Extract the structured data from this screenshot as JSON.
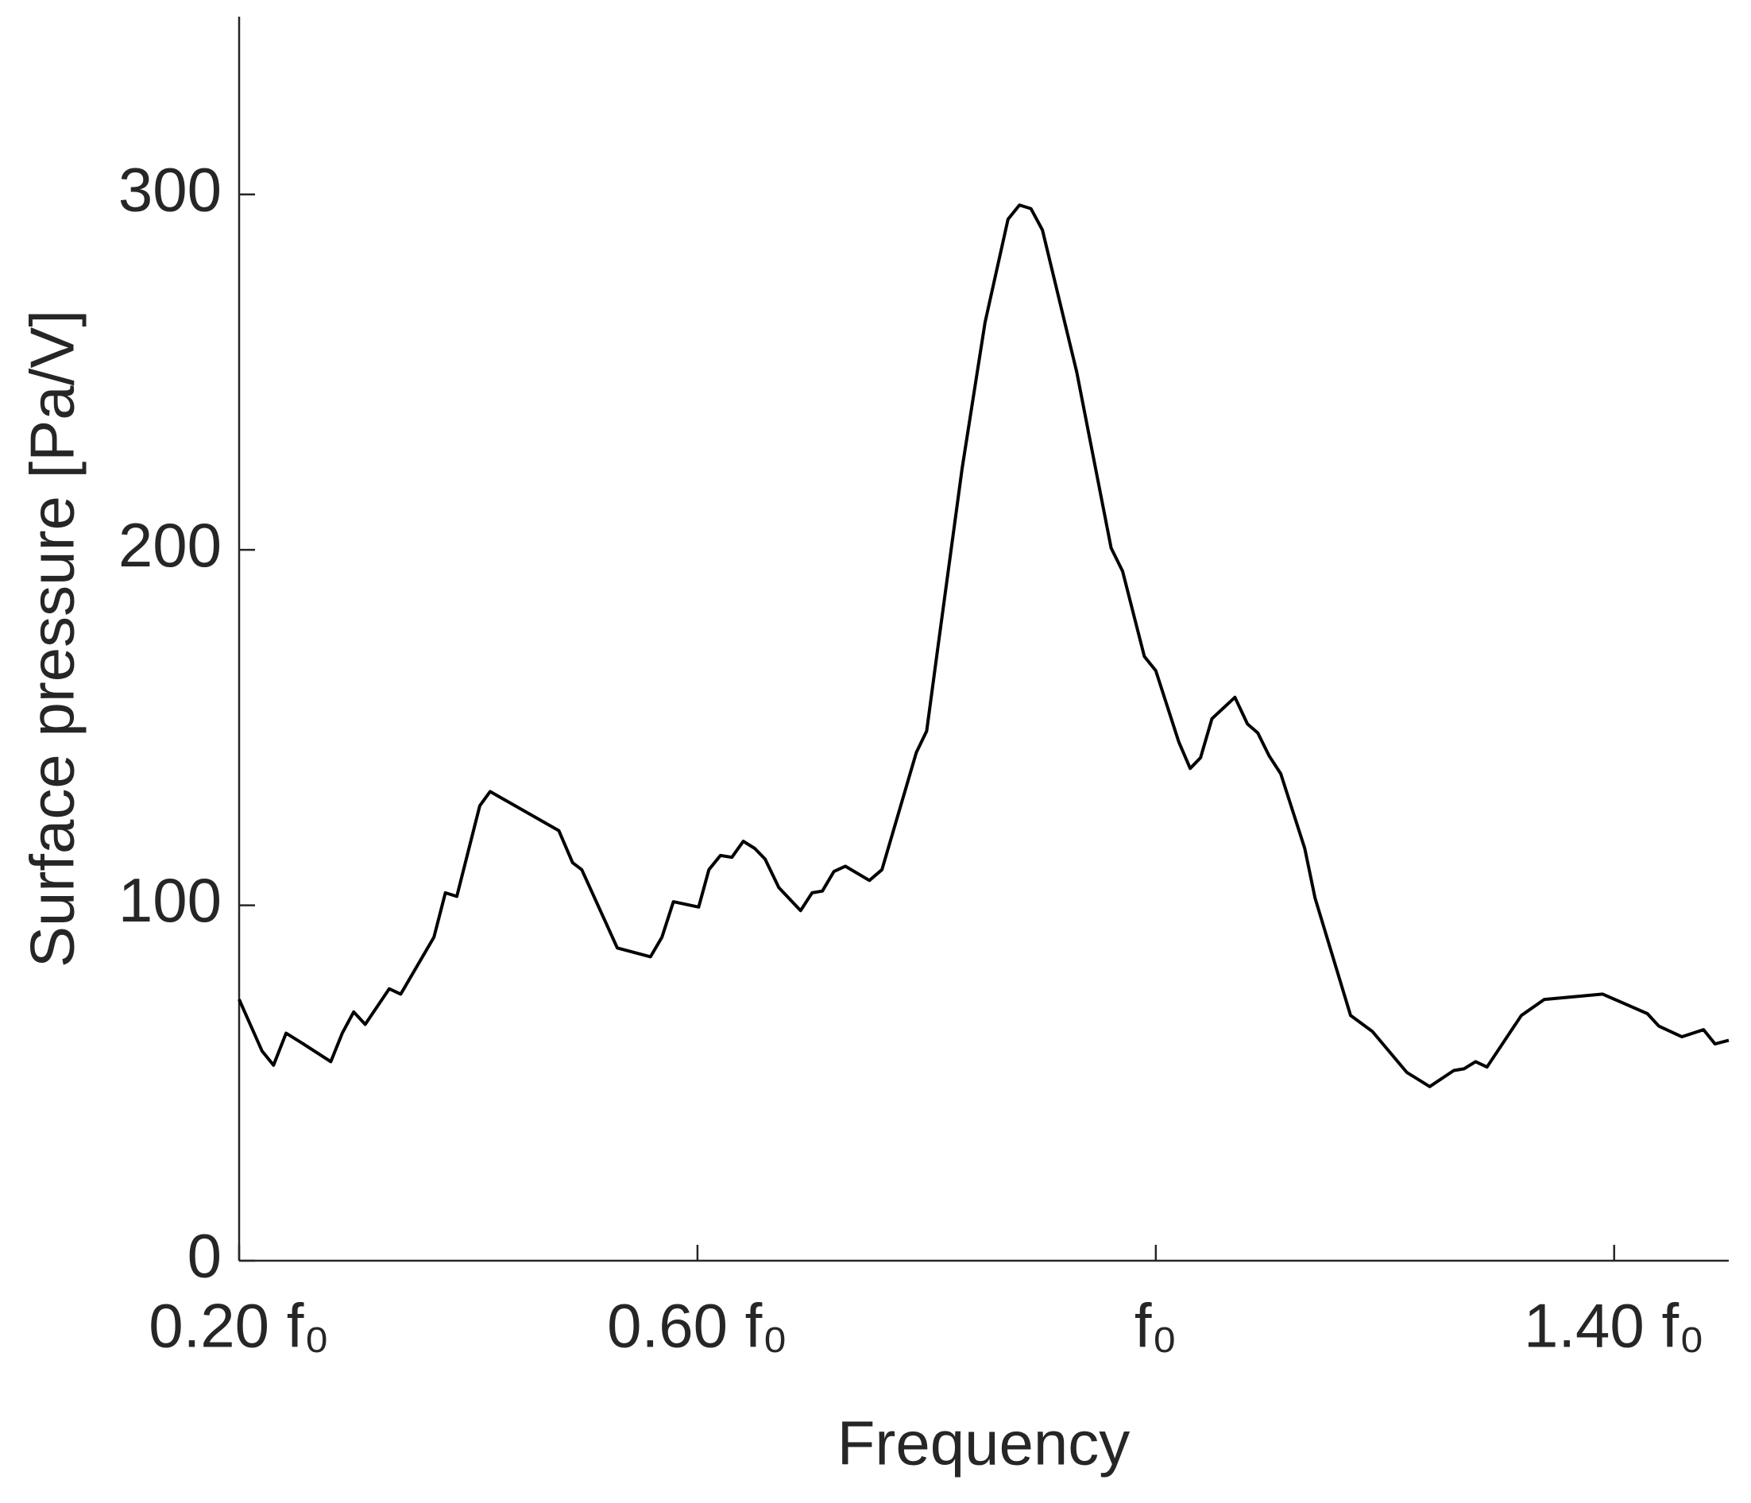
{
  "chart_data": {
    "type": "line",
    "x_label": "Frequency",
    "y_label": "Surface pressure [Pa/V]",
    "xlim": [
      0.2,
      1.5
    ],
    "ylim": [
      0,
      350
    ],
    "xticks": [
      {
        "value": 0.2,
        "label": "0.20 f₀"
      },
      {
        "value": 0.6,
        "label": "0.60 f₀"
      },
      {
        "value": 1.0,
        "label": "f₀"
      },
      {
        "value": 1.4,
        "label": "1.40 f₀"
      }
    ],
    "yticks": [
      0,
      100,
      200,
      300
    ],
    "grid": false,
    "color": "#000000",
    "x": [
      0.2,
      0.22,
      0.23,
      0.241,
      0.256,
      0.28,
      0.29,
      0.3,
      0.31,
      0.331,
      0.341,
      0.37,
      0.38,
      0.39,
      0.41,
      0.419,
      0.479,
      0.491,
      0.499,
      0.53,
      0.559,
      0.569,
      0.579,
      0.601,
      0.61,
      0.62,
      0.63,
      0.64,
      0.65,
      0.659,
      0.671,
      0.69,
      0.7,
      0.709,
      0.719,
      0.729,
      0.75,
      0.761,
      0.791,
      0.8,
      0.81,
      0.831,
      0.851,
      0.871,
      0.881,
      0.891,
      0.901,
      0.931,
      0.961,
      0.971,
      0.99,
      1.0,
      1.02,
      1.03,
      1.039,
      1.049,
      1.069,
      1.08,
      1.089,
      1.099,
      1.109,
      1.13,
      1.139,
      1.17,
      1.189,
      1.219,
      1.239,
      1.26,
      1.269,
      1.279,
      1.289,
      1.319,
      1.339,
      1.39,
      1.429,
      1.439,
      1.459,
      1.478,
      1.488,
      1.5
    ],
    "values": [
      73.5,
      59,
      55,
      64,
      61,
      56,
      64,
      70,
      66.5,
      76.5,
      75,
      91,
      103.5,
      102.5,
      128,
      132,
      121,
      112,
      110,
      88,
      85.5,
      91,
      101,
      99.5,
      110,
      114,
      113.5,
      118,
      116,
      113,
      105,
      98.5,
      103.5,
      104,
      109.5,
      111,
      107,
      110,
      143,
      149,
      173,
      223,
      264,
      293,
      297,
      296,
      290,
      250,
      200.5,
      194,
      170,
      166,
      146,
      138.5,
      141.5,
      152.5,
      158.5,
      151,
      148.5,
      142,
      137,
      116,
      102,
      69,
      64.5,
      53,
      49,
      53.5,
      54,
      56,
      54.5,
      69,
      73.5,
      75,
      69.5,
      66,
      63,
      65,
      61,
      62
    ]
  }
}
